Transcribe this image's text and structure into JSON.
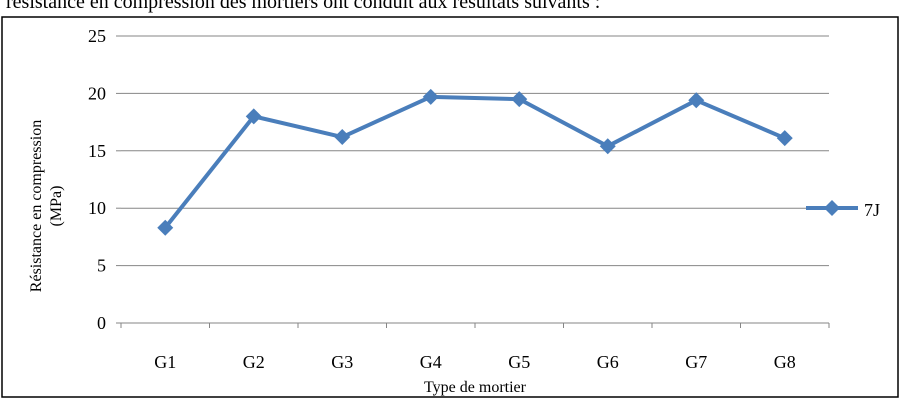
{
  "document": {
    "intro_text": "résistance en compression des mortiers ont conduit aux résultats suivants :"
  },
  "colors": {
    "series": "#4a7ebb",
    "grid": "#868686",
    "axis": "#868686",
    "frame": "#000000"
  },
  "chart_data": {
    "type": "line",
    "title": "",
    "xlabel": "Type de mortier",
    "ylabel_lines": [
      "Résistance en compression",
      "(MPa)"
    ],
    "categories": [
      "G1",
      "G2",
      "G3",
      "G4",
      "G5",
      "G6",
      "G7",
      "G8"
    ],
    "ylim": [
      0,
      25
    ],
    "yticks": [
      0,
      5,
      10,
      15,
      20,
      25
    ],
    "grid": true,
    "legend_position": "right",
    "marker": "diamond",
    "series": [
      {
        "name": "7J",
        "values": [
          8.3,
          18.0,
          16.2,
          19.7,
          19.5,
          15.4,
          19.4,
          16.1
        ]
      }
    ]
  }
}
